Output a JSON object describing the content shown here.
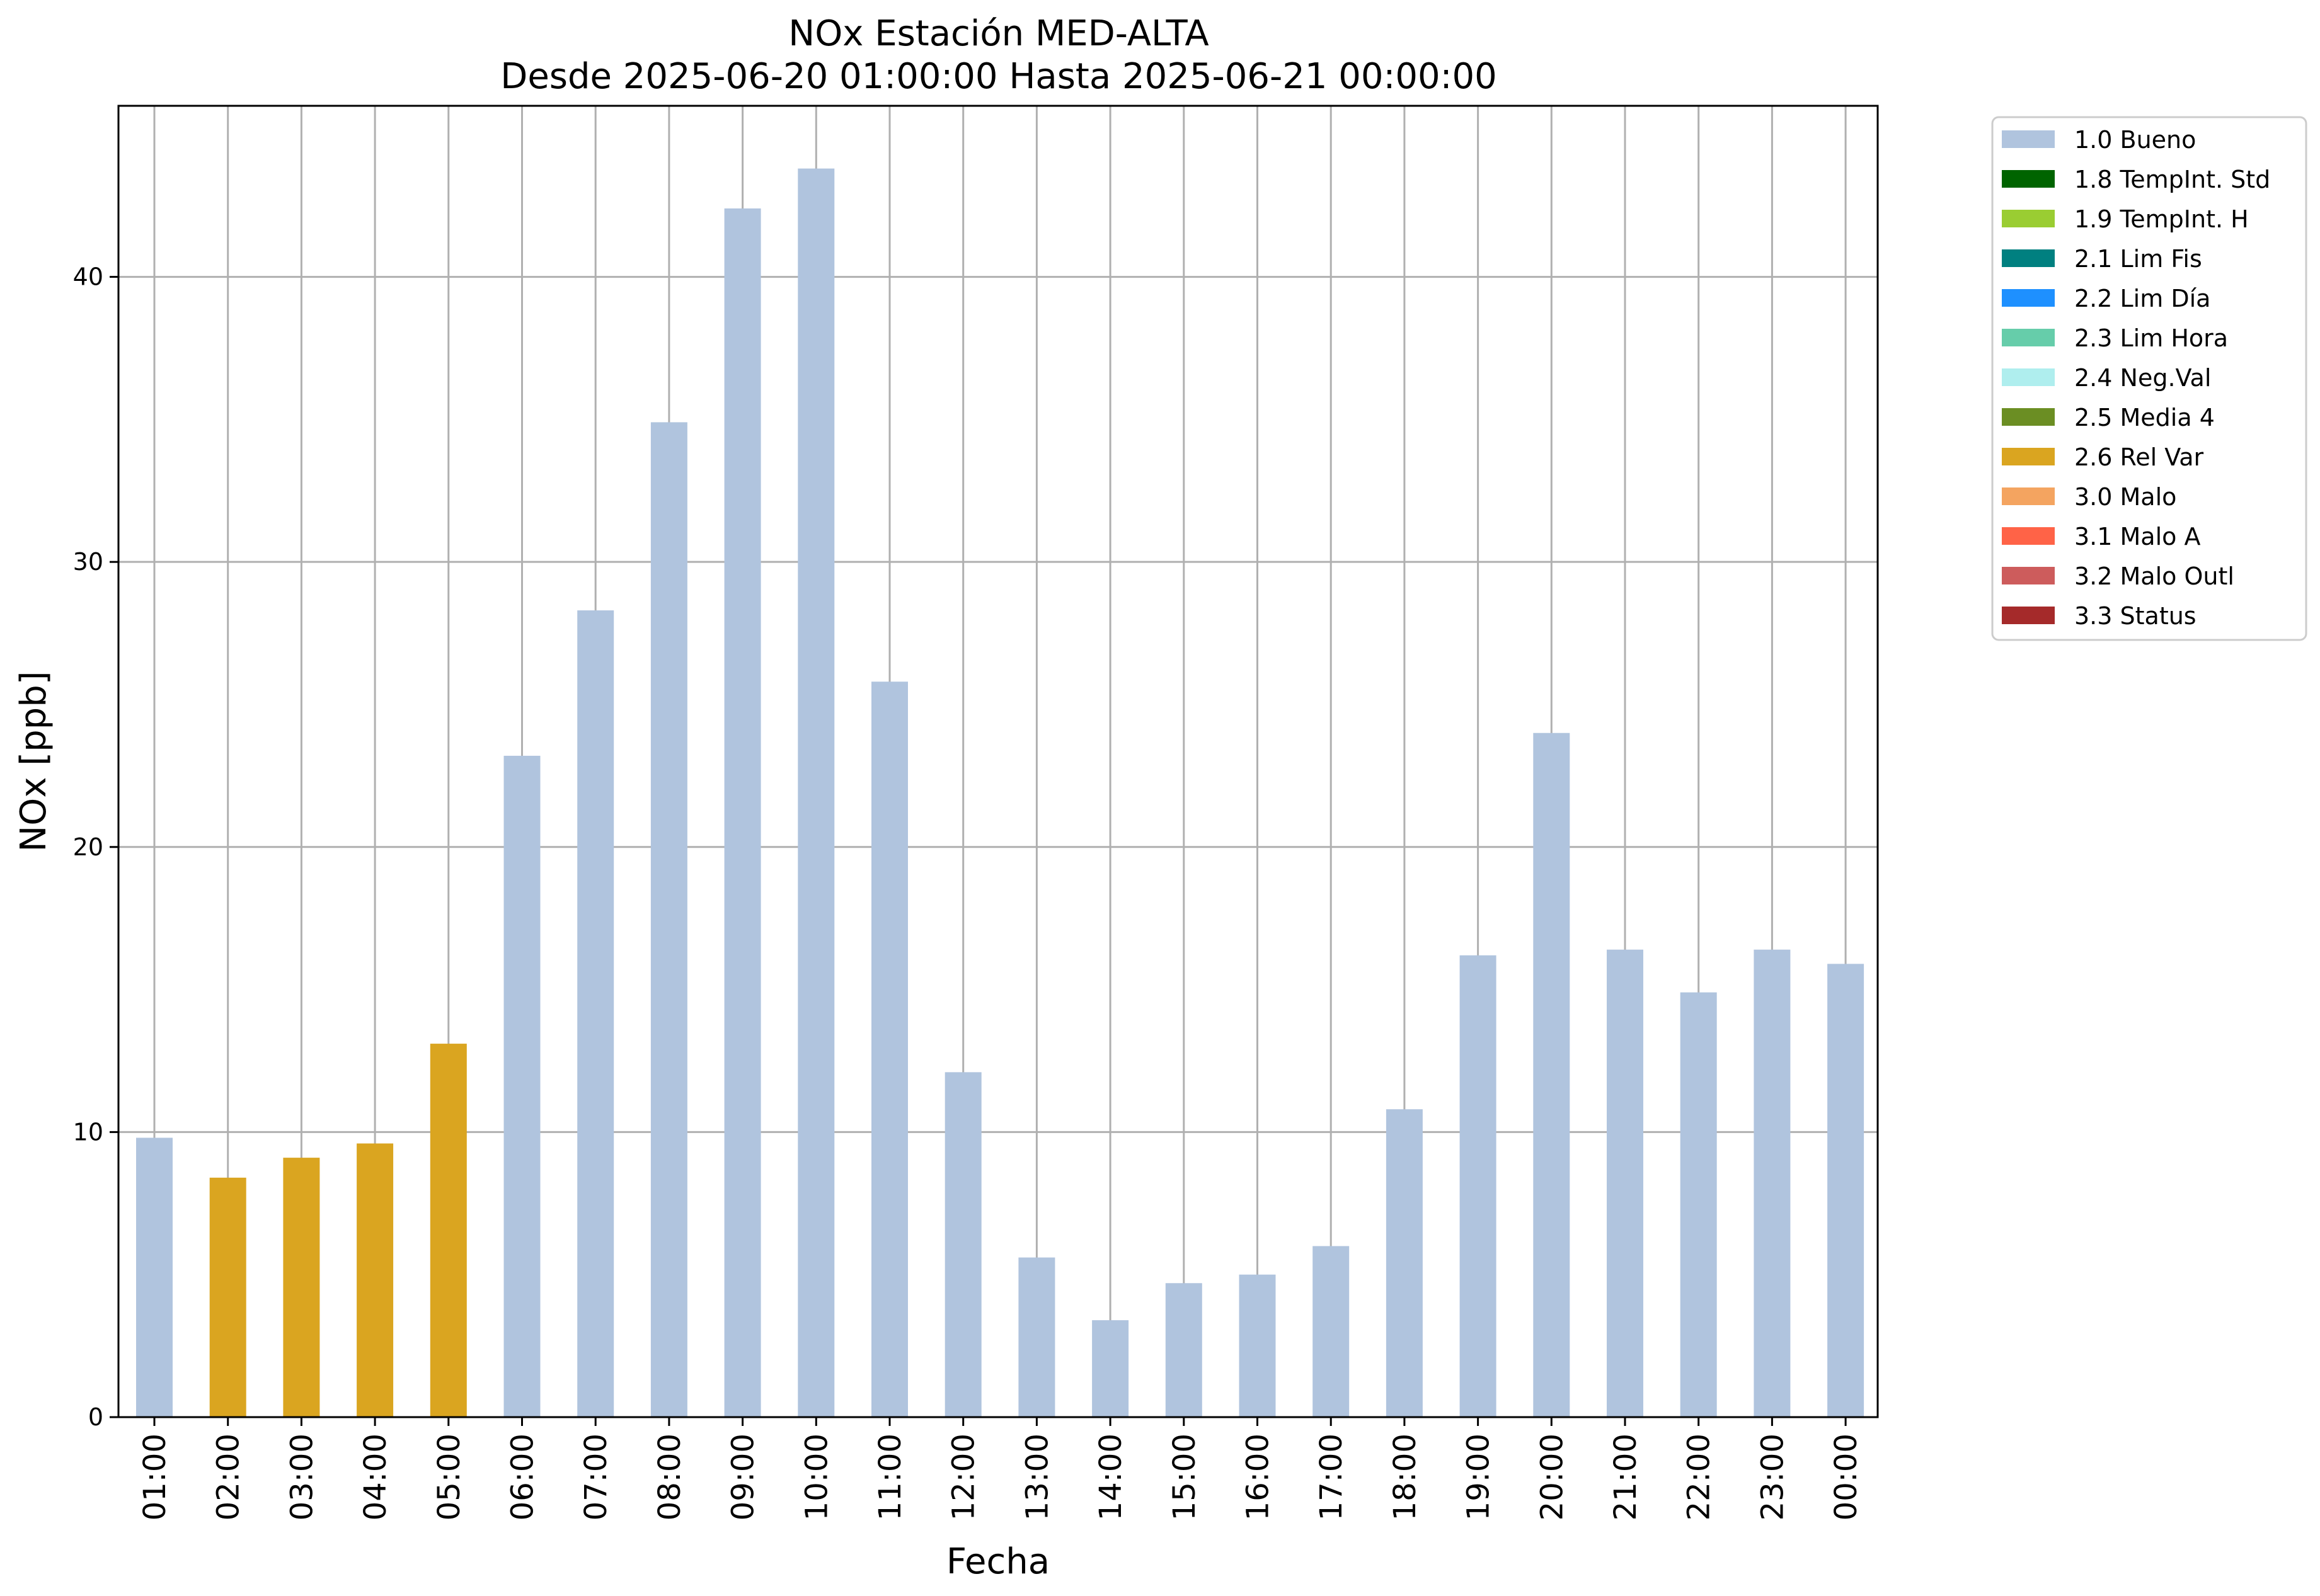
{
  "chart_data": {
    "type": "bar",
    "title": "NOx Estación MED-ALTA",
    "subtitle": "Desde 2025-06-20 01:00:00 Hasta 2025-06-21 00:00:00",
    "xlabel": "Fecha",
    "ylabel": "NOx [ppb]",
    "ylim": [
      0,
      46
    ],
    "yticks": [
      "0",
      "10",
      "20",
      "30",
      "40"
    ],
    "grid": true,
    "legend_position": "outside-top-right",
    "categories": [
      "01:00",
      "02:00",
      "03:00",
      "04:00",
      "05:00",
      "06:00",
      "07:00",
      "08:00",
      "09:00",
      "10:00",
      "11:00",
      "12:00",
      "13:00",
      "14:00",
      "15:00",
      "16:00",
      "17:00",
      "18:00",
      "19:00",
      "20:00",
      "21:00",
      "22:00",
      "23:00",
      "00:00"
    ],
    "values": [
      9.8,
      8.4,
      9.1,
      9.6,
      13.1,
      23.2,
      28.3,
      34.9,
      42.4,
      43.8,
      25.8,
      12.1,
      5.6,
      3.4,
      4.7,
      5.0,
      6.0,
      10.8,
      16.2,
      24.0,
      16.4,
      14.9,
      16.4,
      15.9
    ],
    "flags": [
      "1.0 Bueno",
      "2.6 Rel Var",
      "2.6 Rel Var",
      "2.6 Rel Var",
      "2.6 Rel Var",
      "1.0 Bueno",
      "1.0 Bueno",
      "1.0 Bueno",
      "1.0 Bueno",
      "1.0 Bueno",
      "1.0 Bueno",
      "1.0 Bueno",
      "1.0 Bueno",
      "1.0 Bueno",
      "1.0 Bueno",
      "1.0 Bueno",
      "1.0 Bueno",
      "1.0 Bueno",
      "1.0 Bueno",
      "1.0 Bueno",
      "1.0 Bueno",
      "1.0 Bueno",
      "1.0 Bueno",
      "1.0 Bueno"
    ],
    "legend": [
      {
        "label": "1.0 Bueno",
        "color": "#b0c4de"
      },
      {
        "label": "1.8 TempInt. Std",
        "color": "#006400"
      },
      {
        "label": "1.9 TempInt. H",
        "color": "#9acd32"
      },
      {
        "label": "2.1 Lim Fis",
        "color": "#008080"
      },
      {
        "label": "2.2 Lim Día",
        "color": "#1e90ff"
      },
      {
        "label": "2.3 Lim Hora",
        "color": "#66cdaa"
      },
      {
        "label": "2.4 Neg.Val",
        "color": "#afeeee"
      },
      {
        "label": "2.5 Media 4",
        "color": "#6b8e23"
      },
      {
        "label": "2.6 Rel Var",
        "color": "#daa520"
      },
      {
        "label": "3.0 Malo",
        "color": "#f4a460"
      },
      {
        "label": "3.1 Malo A",
        "color": "#ff6347"
      },
      {
        "label": "3.2 Malo Outl",
        "color": "#cd5c5c"
      },
      {
        "label": "3.3 Status",
        "color": "#a52a2a"
      }
    ]
  }
}
